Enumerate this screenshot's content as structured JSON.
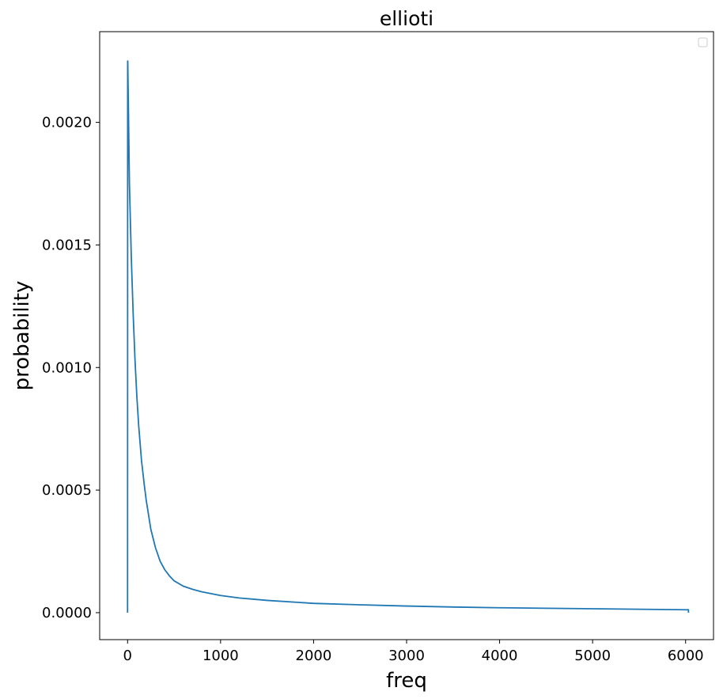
{
  "chart_data": {
    "type": "line",
    "title": "ellioti",
    "xlabel": "freq",
    "ylabel": "probability",
    "xlim": [
      -300,
      6300
    ],
    "ylim": [
      -0.00011,
      0.00237
    ],
    "x_ticks": [
      0,
      1000,
      2000,
      3000,
      4000,
      5000,
      6000
    ],
    "x_tick_labels": [
      "0",
      "1000",
      "2000",
      "3000",
      "4000",
      "5000",
      "6000"
    ],
    "y_ticks": [
      0,
      0.0005,
      0.001,
      0.0015,
      0.002
    ],
    "y_tick_labels": [
      "0.0000",
      "0.0005",
      "0.0010",
      "0.0015",
      "0.0020"
    ],
    "grid": false,
    "legend": {
      "position": "top-right",
      "entries": []
    },
    "color": "#1f77b4",
    "series": [
      {
        "x": [
          0,
          1,
          2,
          20,
          40,
          60,
          80,
          100,
          120,
          150,
          180,
          200,
          250,
          300,
          350,
          400,
          450,
          500,
          600,
          700,
          800,
          1000,
          1200,
          1500,
          2000,
          2500,
          3000,
          3500,
          4000,
          4500,
          5000,
          5500,
          6000,
          6020,
          6030,
          6031
        ],
        "y": [
          0.0,
          0.00225,
          0.00225,
          0.00175,
          0.00145,
          0.00122,
          0.00103,
          0.00088,
          0.00076,
          0.00062,
          0.00052,
          0.00046,
          0.00034,
          0.000265,
          0.00021,
          0.000175,
          0.00015,
          0.00013,
          0.000108,
          9.5e-05,
          8.5e-05,
          7e-05,
          6e-05,
          5e-05,
          3.8e-05,
          3.2e-05,
          2.7e-05,
          2.3e-05,
          2e-05,
          1.8e-05,
          1.6e-05,
          1.4e-05,
          1.2e-05,
          1.2e-05,
          1.2e-05,
          0.0
        ]
      }
    ]
  }
}
